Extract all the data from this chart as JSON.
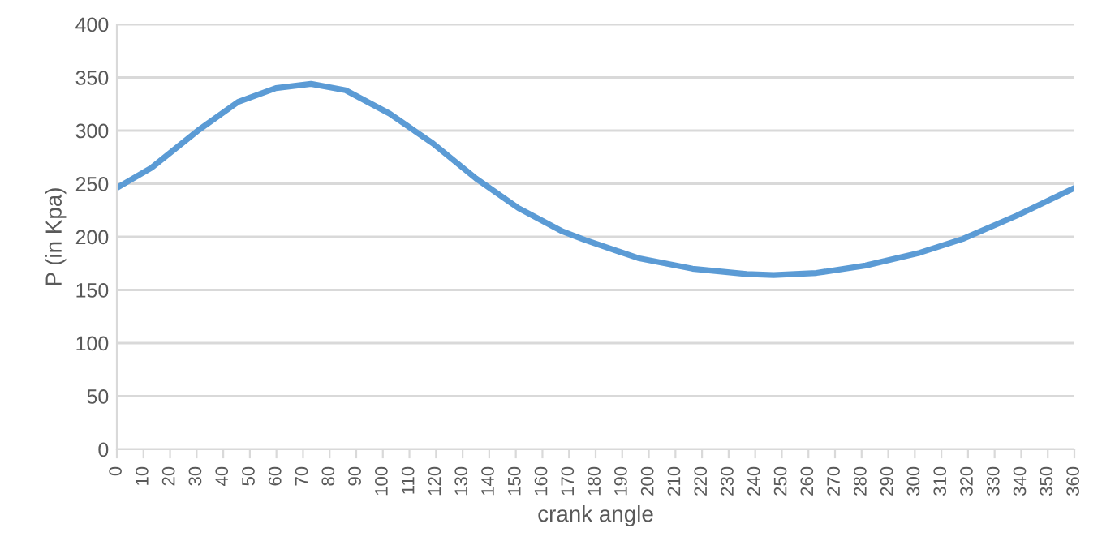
{
  "chart_data": {
    "type": "line",
    "xlabel": "crank angle",
    "ylabel": "P (in Kpa)",
    "x": [
      0,
      13,
      31,
      45.6,
      59.8,
      73,
      86,
      102.5,
      118.8,
      135,
      151,
      167.6,
      176,
      196,
      216.4,
      236.7,
      246.9,
      263,
      281.5,
      301.8,
      318,
      338.4,
      360
    ],
    "series": [
      {
        "color": "#5b9bd5",
        "values": [
          246,
          265,
          301,
          327,
          340,
          344,
          338,
          316,
          288,
          255,
          227,
          205,
          197,
          180,
          170,
          165,
          164,
          166,
          173,
          185,
          198,
          220,
          246
        ]
      }
    ],
    "xlim": [
      0,
      360
    ],
    "xticks": [
      0,
      10,
      20,
      30,
      40,
      50,
      60,
      70,
      80,
      90,
      100,
      110,
      120,
      130,
      140,
      150,
      160,
      170,
      180,
      190,
      200,
      210,
      220,
      230,
      240,
      250,
      260,
      270,
      280,
      290,
      300,
      310,
      320,
      330,
      340,
      350,
      360
    ],
    "ylim": [
      0,
      400
    ],
    "yticks": [
      0,
      50,
      100,
      150,
      200,
      250,
      300,
      350,
      400
    ],
    "grid": "y",
    "marker": "none",
    "line_style": "solid"
  }
}
